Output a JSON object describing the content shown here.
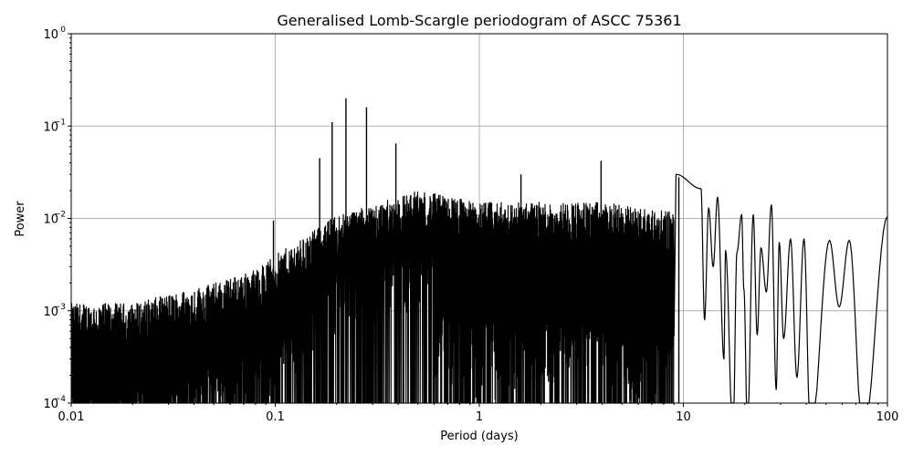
{
  "chart_data": {
    "type": "line",
    "title": "Generalised Lomb-Scargle periodogram of ASCC 75361",
    "xlabel": "Period (days)",
    "ylabel": "Power",
    "xscale": "log",
    "yscale": "log",
    "xlim": [
      0.01,
      100
    ],
    "ylim": [
      0.0001,
      1
    ],
    "grid": true,
    "legend": null,
    "line_color": "#000000",
    "grid_color": "#b0b0b0",
    "xticks": [
      {
        "value": 0.01,
        "label": "0.01"
      },
      {
        "value": 0.1,
        "label": "0.1"
      },
      {
        "value": 1,
        "label": "1"
      },
      {
        "value": 10,
        "label": "10"
      },
      {
        "value": 100,
        "label": "100"
      }
    ],
    "yticks": [
      {
        "value": 1,
        "base": "10",
        "exp": "0"
      },
      {
        "value": 0.1,
        "base": "10",
        "exp": "−1"
      },
      {
        "value": 0.01,
        "base": "10",
        "exp": "−2"
      },
      {
        "value": 0.001,
        "base": "10",
        "exp": "−3"
      },
      {
        "value": 0.0001,
        "base": "10",
        "exp": "−4"
      }
    ],
    "envelope": [
      {
        "period": 0.01,
        "power": 0.0012
      },
      {
        "period": 0.02,
        "power": 0.0012
      },
      {
        "period": 0.03,
        "power": 0.0015
      },
      {
        "period": 0.05,
        "power": 0.002
      },
      {
        "period": 0.08,
        "power": 0.0028
      },
      {
        "period": 0.1,
        "power": 0.004
      },
      {
        "period": 0.15,
        "power": 0.007
      },
      {
        "period": 0.2,
        "power": 0.011
      },
      {
        "period": 0.3,
        "power": 0.014
      },
      {
        "period": 0.5,
        "power": 0.02
      },
      {
        "period": 1.0,
        "power": 0.015
      },
      {
        "period": 2.0,
        "power": 0.015
      },
      {
        "period": 4.0,
        "power": 0.015
      },
      {
        "period": 8.0,
        "power": 0.012
      }
    ],
    "peaks": [
      {
        "period": 0.098,
        "power": 0.0095
      },
      {
        "period": 0.165,
        "power": 0.045
      },
      {
        "period": 0.19,
        "power": 0.11
      },
      {
        "period": 0.222,
        "power": 0.2
      },
      {
        "period": 0.28,
        "power": 0.16
      },
      {
        "period": 0.39,
        "power": 0.065
      },
      {
        "period": 1.6,
        "power": 0.03
      },
      {
        "period": 3.95,
        "power": 0.042
      },
      {
        "period": 9.5,
        "power": 0.028
      }
    ],
    "long_period_lobes": [
      {
        "period": 9.2,
        "power": 0.03
      },
      {
        "period": 12.2,
        "power": 0.021
      },
      {
        "period": 13.3,
        "power": 0.013
      },
      {
        "period": 14.7,
        "power": 0.017
      },
      {
        "period": 16.1,
        "power": 0.0045
      },
      {
        "period": 18.3,
        "power": 0.0043
      },
      {
        "period": 19.3,
        "power": 0.011
      },
      {
        "period": 22.0,
        "power": 0.011
      },
      {
        "period": 24.0,
        "power": 0.0048
      },
      {
        "period": 27.0,
        "power": 0.014
      },
      {
        "period": 29.5,
        "power": 0.0055
      },
      {
        "period": 33.5,
        "power": 0.006
      },
      {
        "period": 39.0,
        "power": 0.006
      },
      {
        "period": 52.0,
        "power": 0.0058
      },
      {
        "period": 65.0,
        "power": 0.0058
      },
      {
        "period": 100.0,
        "power": 0.0105
      }
    ],
    "long_period_troughs": [
      {
        "period": 12.7,
        "power": 0.0008
      },
      {
        "period": 14.0,
        "power": 0.003
      },
      {
        "period": 15.8,
        "power": 0.0003
      },
      {
        "period": 17.5,
        "power": 4e-05
      },
      {
        "period": 19.8,
        "power": 0.0017
      },
      {
        "period": 20.6,
        "power": 5e-05
      },
      {
        "period": 23.0,
        "power": 0.00055
      },
      {
        "period": 25.5,
        "power": 0.0016
      },
      {
        "period": 28.5,
        "power": 0.00014
      },
      {
        "period": 31.0,
        "power": 0.0005
      },
      {
        "period": 36.0,
        "power": 0.00019
      },
      {
        "period": 42.0,
        "power": 4e-05
      },
      {
        "period": 58.0,
        "power": 0.0011
      },
      {
        "period": 76.0,
        "power": 4e-05
      }
    ]
  }
}
